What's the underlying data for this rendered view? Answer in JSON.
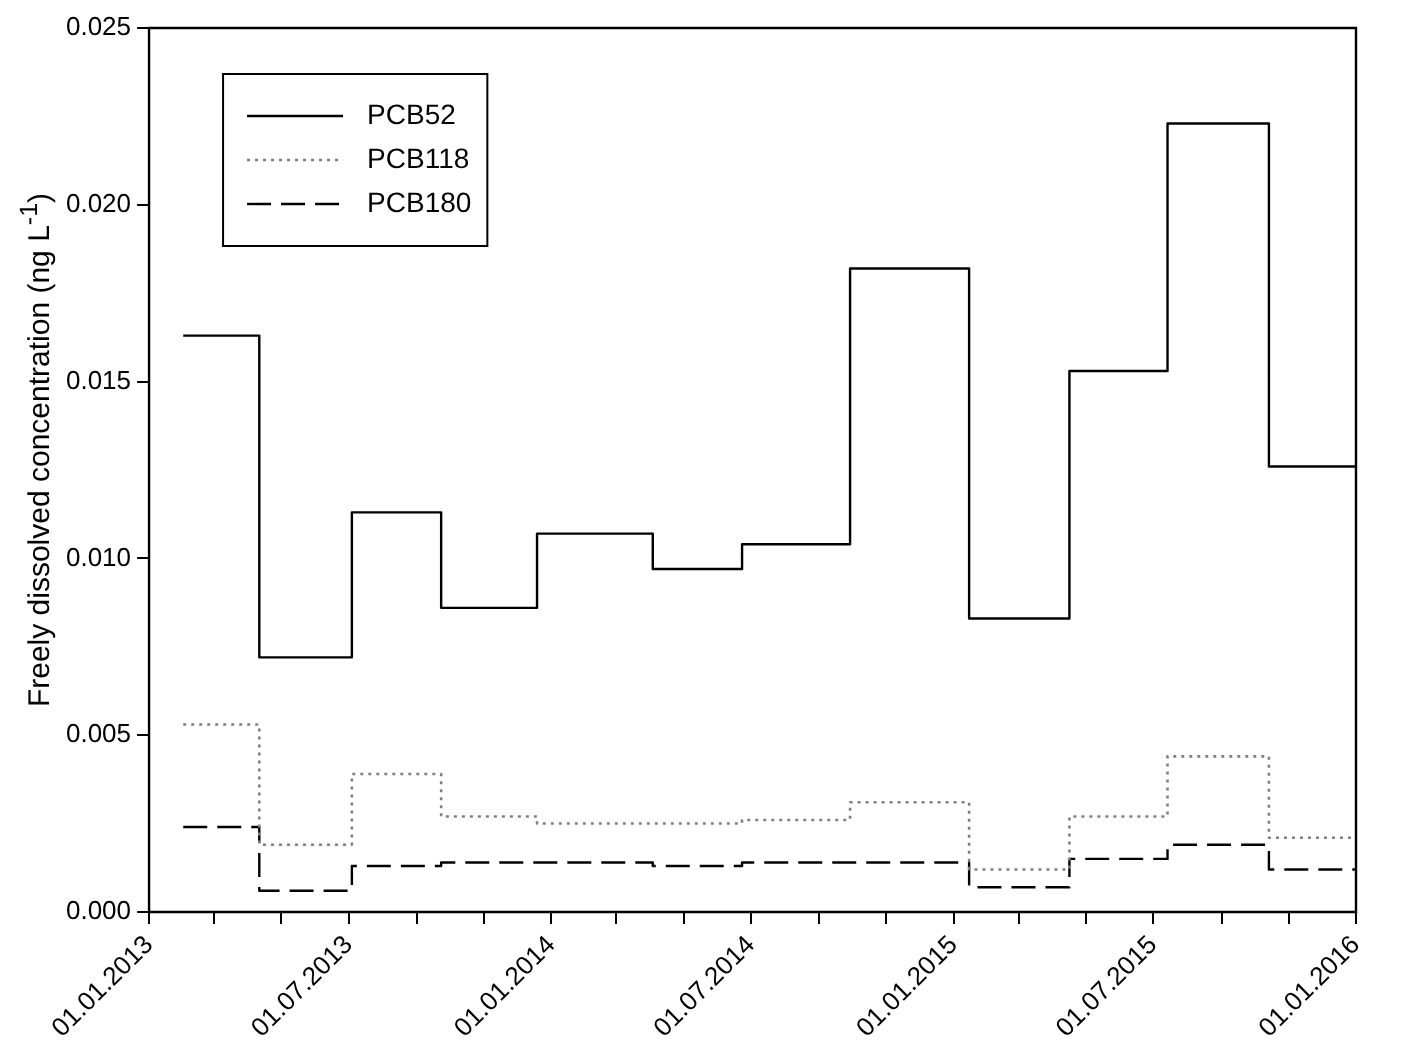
{
  "chart_data": {
    "type": "step",
    "ylabel": "Freely dissolved concentration (ng L$^{-1}$)",
    "x": [
      "2013-02-01",
      "2013-04-11",
      "2013-07-04",
      "2013-09-23",
      "2013-12-19",
      "2014-04-03",
      "2014-06-23",
      "2014-09-29",
      "2015-01-15",
      "2015-04-16",
      "2015-07-14",
      "2015-10-14",
      "2016-01-01"
    ],
    "series": [
      {
        "name": "PCB52",
        "color": "#000000",
        "line_style": "solid",
        "values": [
          0.0163,
          0.0072,
          0.0113,
          0.0086,
          0.0107,
          0.0097,
          0.0104,
          0.0182,
          0.0083,
          0.0153,
          0.0223,
          0.0126,
          0.0126
        ]
      },
      {
        "name": "PCB118",
        "color": "#808080",
        "line_style": "dotted",
        "values": [
          0.0053,
          0.0019,
          0.0039,
          0.0027,
          0.0025,
          0.0025,
          0.0026,
          0.0031,
          0.0012,
          0.0027,
          0.0044,
          0.0021,
          0.0021
        ]
      },
      {
        "name": "PCB180",
        "color": "#000000",
        "line_style": "dashed",
        "values": [
          0.0024,
          0.0006,
          0.0013,
          0.0014,
          0.0014,
          0.0013,
          0.0014,
          0.0014,
          0.0007,
          0.0015,
          0.0019,
          0.0012,
          0.0012
        ]
      }
    ],
    "xlim": [
      "2013-01-01",
      "2016-01-01"
    ],
    "xticks": [
      {
        "value": "2013-01-01",
        "label": "01.01.2013"
      },
      {
        "value": "2013-03-01",
        "label": null
      },
      {
        "value": "2013-05-01",
        "label": null
      },
      {
        "value": "2013-07-01",
        "label": "01.07.2013"
      },
      {
        "value": "2013-09-01",
        "label": null
      },
      {
        "value": "2013-11-01",
        "label": null
      },
      {
        "value": "2014-01-01",
        "label": "01.01.2014"
      },
      {
        "value": "2014-03-01",
        "label": null
      },
      {
        "value": "2014-05-01",
        "label": null
      },
      {
        "value": "2014-07-01",
        "label": "01.07.2014"
      },
      {
        "value": "2014-09-01",
        "label": null
      },
      {
        "value": "2014-11-01",
        "label": null
      },
      {
        "value": "2015-01-01",
        "label": "01.01.2015"
      },
      {
        "value": "2015-03-01",
        "label": null
      },
      {
        "value": "2015-05-01",
        "label": null
      },
      {
        "value": "2015-07-01",
        "label": "01.07.2015"
      },
      {
        "value": "2015-09-01",
        "label": null
      },
      {
        "value": "2015-11-01",
        "label": null
      },
      {
        "value": "2016-01-01",
        "label": "01.01.2016"
      }
    ],
    "ylim": [
      0,
      0.025
    ],
    "yticks": [
      {
        "value": 0,
        "label": "0.000"
      },
      {
        "value": 0.005,
        "label": "0.005"
      },
      {
        "value": 0.01,
        "label": "0.010"
      },
      {
        "value": 0.015,
        "label": "0.015"
      },
      {
        "value": 0.02,
        "label": "0.020"
      },
      {
        "value": 0.025,
        "label": "0.025"
      }
    ],
    "legend": "top left",
    "grid": false,
    "marker": "none"
  }
}
